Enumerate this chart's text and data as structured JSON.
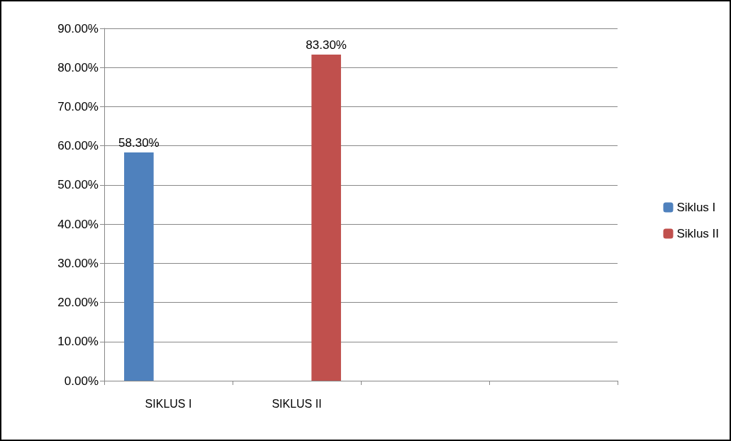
{
  "chart_data": {
    "type": "bar",
    "categories": [
      "SIKLUS I",
      "SIKLUS II",
      null,
      null
    ],
    "series": [
      {
        "name": "Siklus I",
        "color": "#4f81bd",
        "values": [
          58.3,
          null,
          null,
          null
        ],
        "value_labels": [
          "58.30%",
          null,
          null,
          null
        ]
      },
      {
        "name": "Siklus II",
        "color": "#c0504d",
        "values": [
          null,
          83.3,
          null,
          null
        ],
        "value_labels": [
          null,
          "83.30%",
          null,
          null
        ]
      }
    ],
    "ylim": [
      0,
      90
    ],
    "yticks": [
      {
        "value": 0,
        "label": "0.00%"
      },
      {
        "value": 10,
        "label": "10.00%"
      },
      {
        "value": 20,
        "label": "20.00%"
      },
      {
        "value": 30,
        "label": "30.00%"
      },
      {
        "value": 40,
        "label": "40.00%"
      },
      {
        "value": 50,
        "label": "50.00%"
      },
      {
        "value": 60,
        "label": "60.00%"
      },
      {
        "value": 70,
        "label": "70.00%"
      },
      {
        "value": 80,
        "label": "80.00%"
      },
      {
        "value": 90,
        "label": "90.00%"
      }
    ],
    "grid": "y",
    "legend": "right"
  }
}
